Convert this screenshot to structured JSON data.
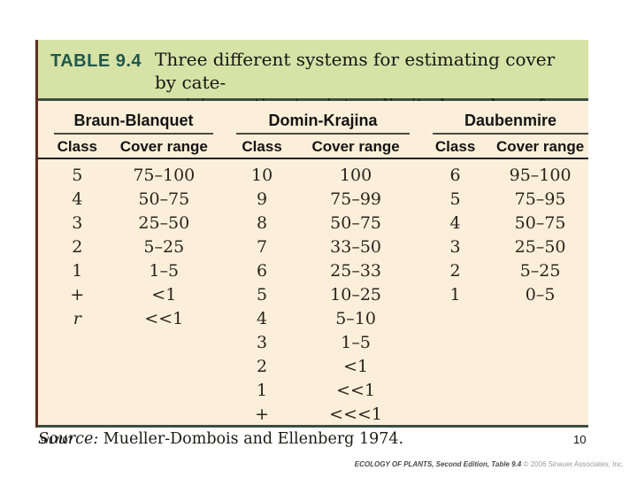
{
  "table": {
    "label": "TABLE 9.4",
    "caption_line1": "Three different systems for estimating cover by cate-",
    "caption_line2": "gorizing estimates into a limited number of classes",
    "class_header": "Class",
    "range_header": "Cover range"
  },
  "systems": [
    {
      "name": "Braun-Blanquet",
      "rows": [
        {
          "class": "5",
          "range": "75–100"
        },
        {
          "class": "4",
          "range": "50–75"
        },
        {
          "class": "3",
          "range": "25–50"
        },
        {
          "class": "2",
          "range": "5–25"
        },
        {
          "class": "1",
          "range": "1–5"
        },
        {
          "class": "+",
          "range": "<1"
        },
        {
          "class": "r",
          "range": "<<1"
        }
      ]
    },
    {
      "name": "Domin-Krajina",
      "rows": [
        {
          "class": "10",
          "range": "100"
        },
        {
          "class": "9",
          "range": "75–99"
        },
        {
          "class": "8",
          "range": "50–75"
        },
        {
          "class": "7",
          "range": "33–50"
        },
        {
          "class": "6",
          "range": "25–33"
        },
        {
          "class": "5",
          "range": "10–25"
        },
        {
          "class": "4",
          "range": "5–10"
        },
        {
          "class": "3",
          "range": "1–5"
        },
        {
          "class": "2",
          "range": "<1"
        },
        {
          "class": "1",
          "range": "<<1"
        },
        {
          "class": "+",
          "range": "<<<1"
        }
      ]
    },
    {
      "name": "Daubenmire",
      "rows": [
        {
          "class": "6",
          "range": "95–100"
        },
        {
          "class": "5",
          "range": "75–95"
        },
        {
          "class": "4",
          "range": "50–75"
        },
        {
          "class": "3",
          "range": "25–50"
        },
        {
          "class": "2",
          "range": "5–25"
        },
        {
          "class": "1",
          "range": "0–5"
        }
      ]
    }
  ],
  "footer": {
    "source_label": "Source:",
    "source_text": " Mueller-Dombois and Ellenberg 1974.",
    "date": "9/17/07",
    "page_number": "10",
    "attribution_bold": "ECOLOGY OF PLANTS, Second Edition, Table 9.4",
    "attribution_copyright": " © 2006 Sinauer Associates, Inc."
  },
  "colors": {
    "header_green": "#d6e2a6",
    "table_label_green": "#20584a",
    "body_cream": "#fcefd9",
    "rule_dark": "#3a4f42",
    "left_border_maroon": "#5e2d22"
  }
}
